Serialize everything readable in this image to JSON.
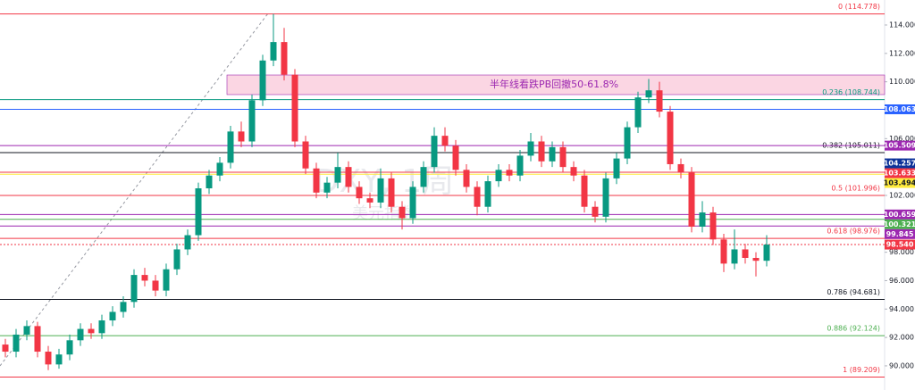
{
  "chart_data": {
    "type": "candlestick",
    "watermark": [
      "DXY, 1周",
      "美元指数"
    ],
    "ylim": [
      88.3,
      115.76
    ],
    "yticks": [
      {
        "value": 90,
        "label": "90.000"
      },
      {
        "value": 92,
        "label": "92.000"
      },
      {
        "value": 94,
        "label": "94.000"
      },
      {
        "value": 96,
        "label": "96.000"
      },
      {
        "value": 98,
        "label": "98.000"
      },
      {
        "value": 100,
        "label": "100.000"
      },
      {
        "value": 102,
        "label": "102.000"
      },
      {
        "value": 104,
        "label": "104.000"
      },
      {
        "value": 106,
        "label": "106.000"
      },
      {
        "value": 108,
        "label": "108.000"
      },
      {
        "value": 110,
        "label": "110.000"
      },
      {
        "value": 112,
        "label": "112.000"
      },
      {
        "value": 114,
        "label": "114.000"
      }
    ],
    "up_color": "#089981",
    "down_color": "#f23645",
    "ohlc": [
      [
        91.5,
        91.9,
        90.6,
        91.0
      ],
      [
        91.0,
        92.6,
        90.6,
        92.2
      ],
      [
        92.2,
        93.2,
        91.8,
        92.8
      ],
      [
        92.8,
        93.1,
        90.6,
        91.0
      ],
      [
        91.0,
        91.4,
        89.7,
        90.1
      ],
      [
        90.1,
        91.2,
        89.8,
        90.8
      ],
      [
        90.8,
        92.2,
        90.4,
        91.8
      ],
      [
        91.8,
        93.0,
        91.4,
        92.6
      ],
      [
        92.6,
        93.0,
        91.9,
        92.3
      ],
      [
        92.3,
        93.6,
        91.9,
        93.2
      ],
      [
        93.2,
        94.2,
        92.8,
        93.8
      ],
      [
        93.8,
        94.9,
        93.4,
        94.5
      ],
      [
        94.5,
        96.8,
        94.1,
        96.4
      ],
      [
        96.4,
        96.9,
        95.6,
        96.0
      ],
      [
        96.0,
        96.4,
        94.9,
        95.3
      ],
      [
        95.3,
        97.2,
        94.9,
        96.8
      ],
      [
        96.8,
        98.6,
        96.4,
        98.2
      ],
      [
        98.2,
        99.6,
        97.8,
        99.2
      ],
      [
        99.2,
        102.9,
        98.8,
        102.5
      ],
      [
        102.5,
        103.8,
        102.1,
        103.4
      ],
      [
        103.4,
        104.7,
        103.0,
        104.3
      ],
      [
        104.3,
        106.9,
        103.9,
        106.5
      ],
      [
        106.5,
        107.2,
        105.4,
        105.8
      ],
      [
        105.8,
        109.1,
        105.4,
        108.7
      ],
      [
        108.7,
        111.9,
        108.3,
        111.5
      ],
      [
        111.5,
        114.78,
        111.1,
        112.8
      ],
      [
        112.8,
        113.8,
        110.1,
        110.5
      ],
      [
        110.5,
        110.9,
        105.4,
        105.8
      ],
      [
        105.8,
        106.2,
        103.5,
        103.9
      ],
      [
        103.9,
        104.3,
        101.8,
        102.2
      ],
      [
        102.2,
        103.3,
        101.8,
        102.9
      ],
      [
        102.9,
        105.0,
        102.5,
        104.0
      ],
      [
        104.0,
        104.4,
        102.2,
        102.6
      ],
      [
        102.6,
        103.0,
        101.4,
        101.8
      ],
      [
        101.8,
        102.2,
        101.1,
        101.5
      ],
      [
        101.5,
        103.9,
        101.1,
        103.2
      ],
      [
        103.2,
        103.6,
        100.8,
        101.2
      ],
      [
        101.2,
        101.6,
        99.6,
        100.4
      ],
      [
        100.4,
        103.0,
        100.0,
        102.6
      ],
      [
        102.6,
        104.4,
        102.2,
        104.0
      ],
      [
        104.0,
        106.8,
        103.6,
        106.2
      ],
      [
        106.2,
        106.8,
        105.1,
        105.5
      ],
      [
        105.5,
        105.9,
        103.4,
        103.8
      ],
      [
        103.8,
        104.2,
        102.2,
        102.6
      ],
      [
        102.6,
        103.0,
        100.6,
        101.2
      ],
      [
        101.2,
        103.4,
        100.8,
        103.0
      ],
      [
        103.0,
        104.2,
        102.6,
        103.8
      ],
      [
        103.8,
        104.2,
        103.0,
        103.4
      ],
      [
        103.4,
        105.2,
        103.0,
        104.8
      ],
      [
        104.8,
        106.4,
        104.4,
        105.8
      ],
      [
        105.8,
        106.2,
        104.0,
        104.4
      ],
      [
        104.4,
        105.8,
        104.0,
        105.4
      ],
      [
        105.4,
        105.8,
        103.6,
        104.0
      ],
      [
        104.0,
        104.4,
        103.0,
        103.4
      ],
      [
        103.4,
        103.8,
        100.8,
        101.2
      ],
      [
        101.2,
        101.6,
        100.1,
        100.5
      ],
      [
        100.5,
        103.6,
        100.1,
        103.2
      ],
      [
        103.2,
        105.0,
        102.8,
        104.6
      ],
      [
        104.6,
        107.2,
        104.2,
        106.8
      ],
      [
        106.8,
        109.3,
        106.4,
        108.9
      ],
      [
        108.9,
        110.2,
        108.5,
        109.4
      ],
      [
        109.4,
        110.0,
        107.5,
        107.9
      ],
      [
        107.9,
        108.3,
        103.8,
        104.2
      ],
      [
        104.2,
        104.6,
        103.2,
        103.6
      ],
      [
        103.6,
        104.0,
        99.4,
        99.8
      ],
      [
        99.8,
        101.6,
        99.4,
        100.8
      ],
      [
        100.8,
        101.2,
        98.5,
        98.9
      ],
      [
        98.9,
        99.3,
        96.6,
        97.2
      ],
      [
        97.2,
        99.6,
        96.8,
        98.2
      ],
      [
        98.2,
        98.6,
        97.2,
        97.6
      ],
      [
        97.6,
        98.0,
        96.3,
        97.4
      ],
      [
        97.4,
        99.2,
        97.0,
        98.54
      ]
    ],
    "fib_levels": [
      {
        "value": 114.778,
        "label": "0 (114.778)",
        "color": "#f23645"
      },
      {
        "value": 108.744,
        "label": "0.236 (108.744)",
        "color": "#089981"
      },
      {
        "value": 105.011,
        "label": "0.382 (105.011)",
        "color": "#131722"
      },
      {
        "value": 101.996,
        "label": "0.5 (101.996)",
        "color": "#f23645"
      },
      {
        "value": 98.976,
        "label": "0.618 (98.976)",
        "color": "#f23645"
      },
      {
        "value": 94.681,
        "label": "0.786 (94.681)",
        "color": "#131722"
      },
      {
        "value": 92.124,
        "label": "0.886 (92.124)",
        "color": "#4caf50"
      },
      {
        "value": 89.209,
        "label": "1 (89.209)",
        "color": "#f23645"
      }
    ],
    "price_lines": [
      {
        "value": 108.063,
        "label": "108.063",
        "color": "#2962ff",
        "line": "solid"
      },
      {
        "value": 105.509,
        "label": "105.509",
        "color": "#9c27b0",
        "line": "solid"
      },
      {
        "value": 104.257,
        "label": "104.257",
        "color": "#0c3299",
        "line": "none"
      },
      {
        "value": 103.633,
        "label": "103.633",
        "color": "#f23645",
        "line": "solid"
      },
      {
        "value": 103.494,
        "label": "103.494",
        "color": "#ffeb3b",
        "line": "solid"
      },
      {
        "value": 100.659,
        "label": "100.659",
        "color": "#9c27b0",
        "line": "solid"
      },
      {
        "value": 100.321,
        "label": "100.321",
        "color": "#4caf50",
        "line": "solid"
      },
      {
        "value": 99.845,
        "label": "99.845",
        "color": "#9c27b0",
        "line": "solid"
      },
      {
        "value": 98.54,
        "label": "98.540",
        "color": "#f23645",
        "line": "dotted"
      }
    ],
    "annotation": {
      "text": "半年线看跌PB回撤50-61.8%",
      "top": 110.48,
      "bottom": 109.1,
      "color": "#9c27b0"
    }
  }
}
